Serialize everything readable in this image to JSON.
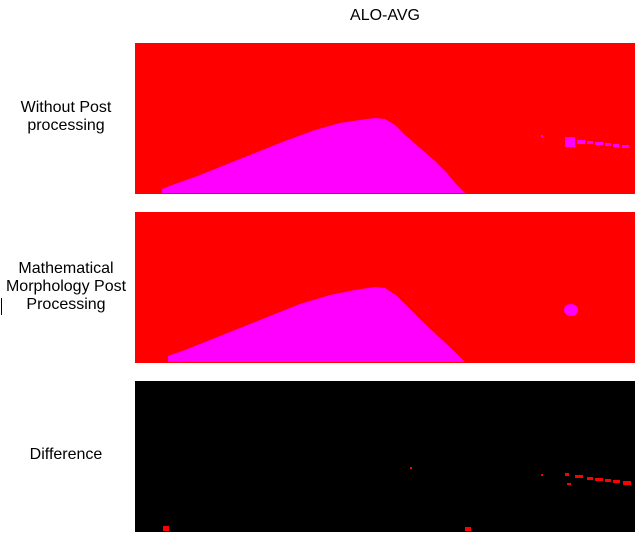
{
  "title": "ALO-AVG",
  "rows": [
    {
      "label_lines": [
        "Without Post",
        "processing"
      ],
      "panel_background": "#ff0000",
      "foreground_color": "#ff00ff"
    },
    {
      "label_lines": [
        "Mathematical",
        "Morphology Post",
        "Processing"
      ],
      "panel_background": "#ff0000",
      "foreground_color": "#ff00ff"
    },
    {
      "label_lines": [
        "Difference"
      ],
      "panel_background": "#000000",
      "foreground_color": "#ff0000"
    }
  ]
}
